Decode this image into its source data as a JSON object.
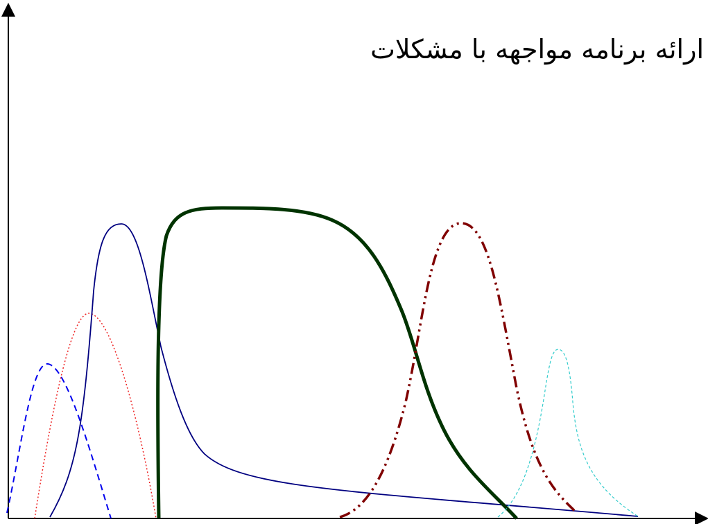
{
  "title": "ارائه برنامه مواجهه با مشکلات",
  "colors": {
    "axis": "#000000",
    "curve_blue_dashed": "#0000ee",
    "curve_red_dotted": "#ee2222",
    "curve_navy_solid": "#000080",
    "curve_dark_green_thick": "#003300",
    "curve_dark_red_dashdot": "#800000",
    "curve_cyan_dashed": "#33cccc"
  },
  "curves": [
    {
      "id": "curve-blue-dashed",
      "style": "dashed",
      "color_key": "curve_blue_dashed"
    },
    {
      "id": "curve-red-dotted",
      "style": "dotted",
      "color_key": "curve_red_dotted"
    },
    {
      "id": "curve-navy-solid",
      "style": "solid",
      "color_key": "curve_navy_solid"
    },
    {
      "id": "curve-dark-green-thick",
      "style": "solid-thick",
      "color_key": "curve_dark_green_thick"
    },
    {
      "id": "curve-dark-red-dashdot",
      "style": "dash-dot-dot",
      "color_key": "curve_dark_red_dashdot"
    },
    {
      "id": "curve-cyan-dashed",
      "style": "dashed",
      "color_key": "curve_cyan_dashed"
    }
  ]
}
